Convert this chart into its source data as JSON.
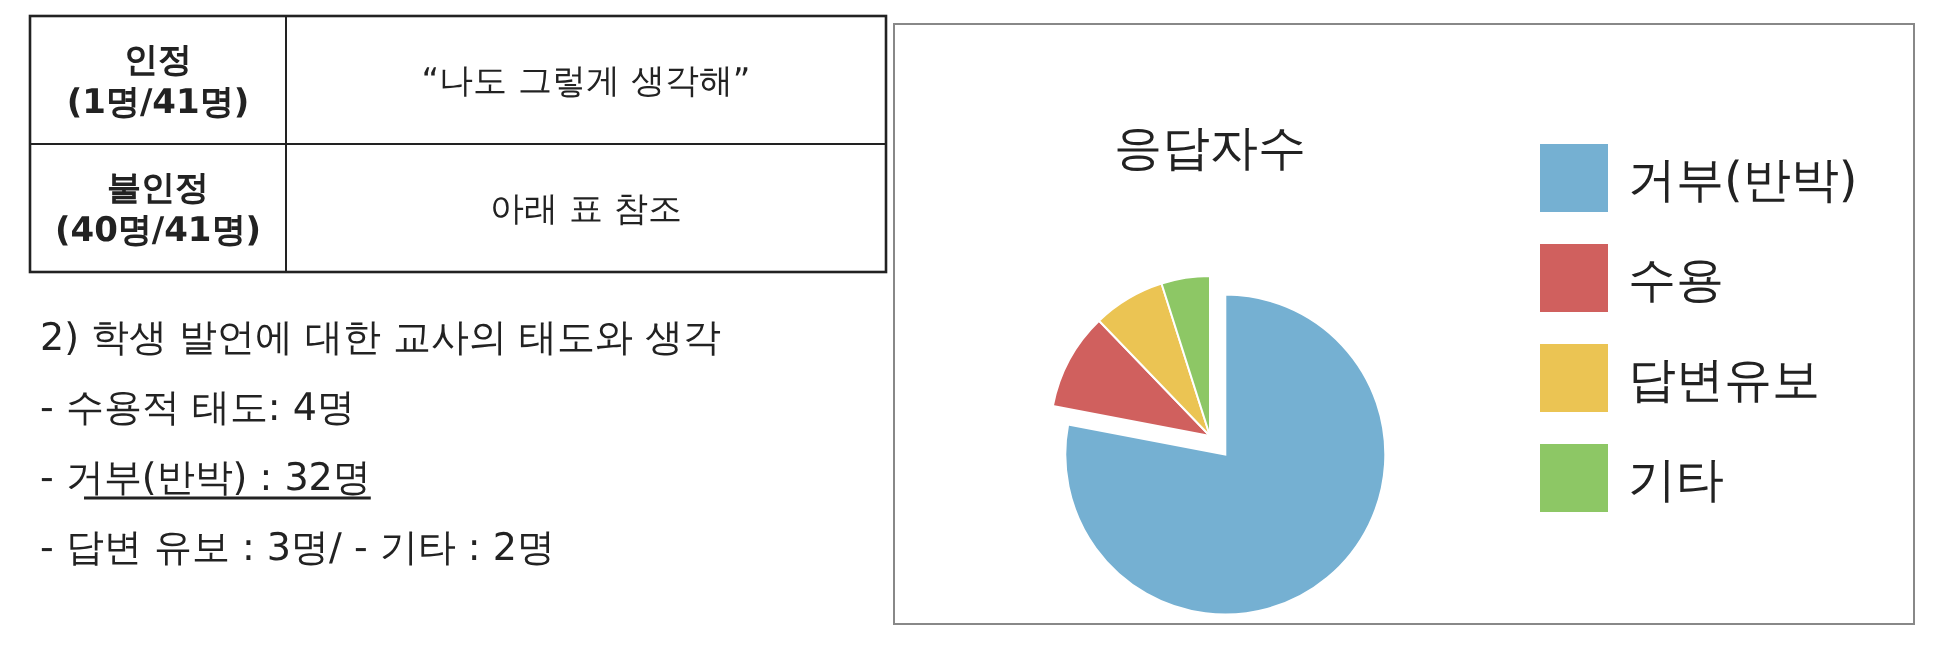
{
  "chart_data": [
    {
      "type": "other",
      "annotations": [
        "인정\n(1명/41명)",
        "“나도 그렇게 생각해”",
        "불인정\n(40명/41명)",
        "아래 표 참조",
        "2) 학생 발언에 대한 교사의 태도와 생각",
        "- 수용적 태도: 4명",
        "- 거부(반박) : 32명",
        "- 답변 유보 : 3명/ - 기타 : 2명"
      ]
    },
    {
      "type": "pie",
      "title": "응답자수",
      "categories": [
        "거부(반박)",
        "수용",
        "답변유보",
        "기타"
      ],
      "values": [
        78.0,
        9.8,
        7.3,
        4.9
      ],
      "colors": [
        "#75b0d2",
        "#d0605e",
        "#ebc453",
        "#8dc765"
      ],
      "legend": "right"
    }
  ]
}
